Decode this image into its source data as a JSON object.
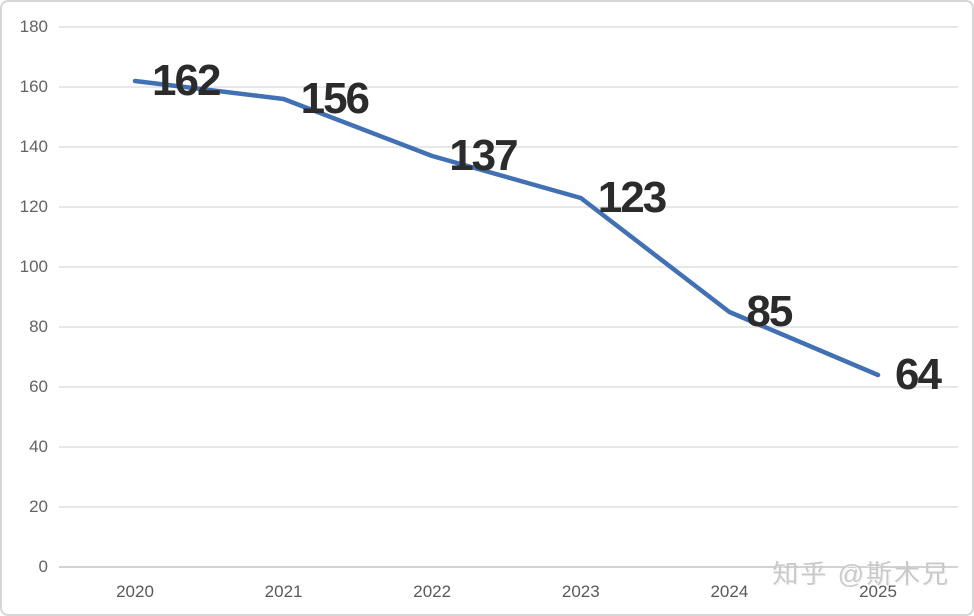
{
  "watermark": {
    "text": "知乎 @斯木兄"
  },
  "chart_data": {
    "type": "line",
    "categories": [
      "2020",
      "2021",
      "2022",
      "2023",
      "2024",
      "2025"
    ],
    "values": [
      162,
      156,
      137,
      123,
      85,
      64
    ],
    "data_labels": [
      "162",
      "156",
      "137",
      "123",
      "85",
      "64"
    ],
    "title": "",
    "xlabel": "",
    "ylabel": "",
    "ylim": [
      0,
      180
    ],
    "yticks": [
      0,
      20,
      40,
      60,
      80,
      100,
      120,
      140,
      160,
      180
    ],
    "grid": true,
    "legend": "none",
    "colors": {
      "line": "#4170b4",
      "data_label": "#2b2b2b",
      "axis_text": "#636363",
      "gridline": "#e7e7e7",
      "axis_line": "#d2d2d2",
      "watermark": "#c9c9c9",
      "background": "#ffffff",
      "border": "#d6d6d6"
    }
  }
}
